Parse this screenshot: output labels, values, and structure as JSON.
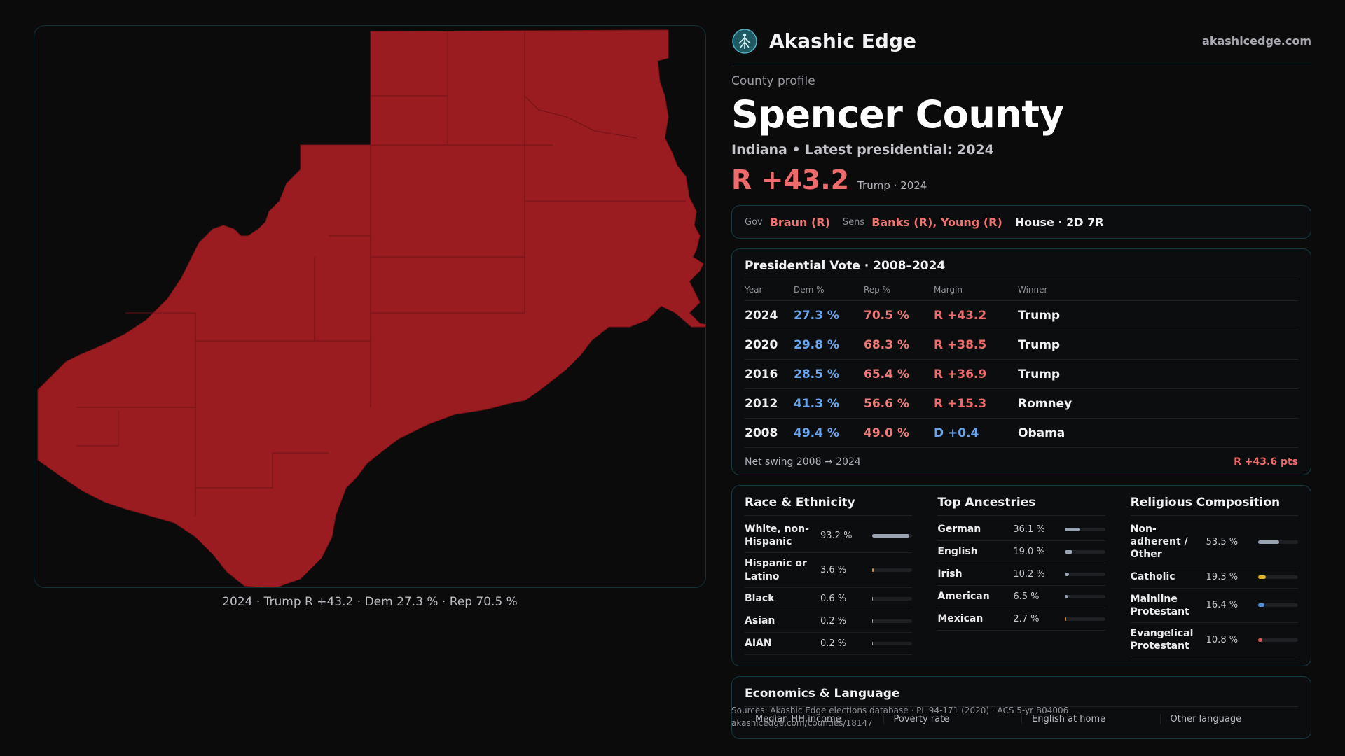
{
  "map_caption": "2024 · Trump R +43.2 · Dem 27.3 % · Rep 70.5 %",
  "map_fill_color": "#9b1c20",
  "brand": {
    "name": "Akashic Edge",
    "url": "akashicedge.com",
    "logo_icon": "tree-of-life-icon"
  },
  "profile_label": "County profile",
  "county_name": "Spencer County",
  "county_subtitle": "Indiana • Latest presidential: 2024",
  "headline_margin": "R +43.2",
  "headline_note": "Trump · 2024",
  "officials": {
    "gov_label": "Gov",
    "gov": "Braun (R)",
    "sens_label": "Sens",
    "sens": "Banks (R), Young (R)",
    "house": "House · 2D 7R"
  },
  "presidential": {
    "title": "Presidential Vote · 2008–2024",
    "headers": [
      "Year",
      "Dem %",
      "Rep %",
      "Margin",
      "Winner"
    ],
    "rows": [
      {
        "year": "2024",
        "dem": "27.3 %",
        "rep": "70.5 %",
        "margin": "R +43.2",
        "party": "R",
        "winner": "Trump"
      },
      {
        "year": "2020",
        "dem": "29.8 %",
        "rep": "68.3 %",
        "margin": "R +38.5",
        "party": "R",
        "winner": "Trump"
      },
      {
        "year": "2016",
        "dem": "28.5 %",
        "rep": "65.4 %",
        "margin": "R +36.9",
        "party": "R",
        "winner": "Trump"
      },
      {
        "year": "2012",
        "dem": "41.3 %",
        "rep": "56.6 %",
        "margin": "R +15.3",
        "party": "R",
        "winner": "Romney"
      },
      {
        "year": "2008",
        "dem": "49.4 %",
        "rep": "49.0 %",
        "margin": "D +0.4",
        "party": "D",
        "winner": "Obama"
      }
    ],
    "swing_label": "Net swing 2008 → 2024",
    "swing_value": "R +43.6 pts"
  },
  "race": {
    "title": "Race & Ethnicity",
    "items": [
      {
        "name": "White, non-Hispanic",
        "value": "93.2 %",
        "pct": 93.2,
        "color": "#9aa3b2"
      },
      {
        "name": "Hispanic or Latino",
        "value": "3.6 %",
        "pct": 3.6,
        "color": "#e0892a"
      },
      {
        "name": "Black",
        "value": "0.6 %",
        "pct": 0.6,
        "color": "#9aa3b2"
      },
      {
        "name": "Asian",
        "value": "0.2 %",
        "pct": 0.2,
        "color": "#9aa3b2"
      },
      {
        "name": "AIAN",
        "value": "0.2 %",
        "pct": 0.2,
        "color": "#9aa3b2"
      }
    ]
  },
  "ancestry": {
    "title": "Top Ancestries",
    "items": [
      {
        "name": "German",
        "value": "36.1 %",
        "pct": 36.1,
        "color": "#9aa3b2"
      },
      {
        "name": "English",
        "value": "19.0 %",
        "pct": 19.0,
        "color": "#9aa3b2"
      },
      {
        "name": "Irish",
        "value": "10.2 %",
        "pct": 10.2,
        "color": "#9aa3b2"
      },
      {
        "name": "American",
        "value": "6.5 %",
        "pct": 6.5,
        "color": "#9aa3b2"
      },
      {
        "name": "Mexican",
        "value": "2.7 %",
        "pct": 2.7,
        "color": "#e0892a"
      }
    ]
  },
  "religion": {
    "title": "Religious Composition",
    "items": [
      {
        "name": "Non-adherent / Other",
        "value": "53.5 %",
        "pct": 53.5,
        "color": "#9aa3b2"
      },
      {
        "name": "Catholic",
        "value": "19.3 %",
        "pct": 19.3,
        "color": "#e2b52a"
      },
      {
        "name": "Mainline Protestant",
        "value": "16.4 %",
        "pct": 16.4,
        "color": "#4f8fe0"
      },
      {
        "name": "Evangelical Protestant",
        "value": "10.8 %",
        "pct": 10.8,
        "color": "#e05a5a"
      }
    ]
  },
  "economics": {
    "title": "Economics & Language",
    "columns": [
      "Median HH income",
      "Poverty rate",
      "English at home",
      "Other language"
    ]
  },
  "sources": {
    "line1": "Sources: Akashic Edge elections database · PL 94-171 (2020) · ACS 5-yr B04006",
    "line2": "akashicedge.com/counties/18147"
  }
}
